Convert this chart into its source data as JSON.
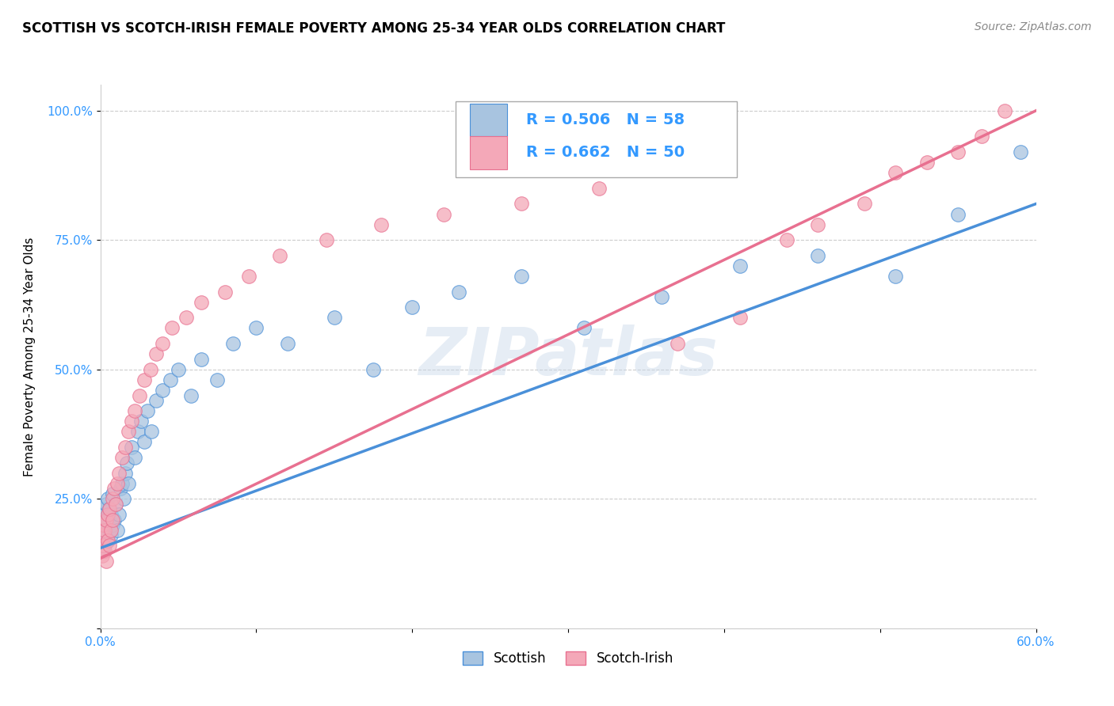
{
  "title": "SCOTTISH VS SCOTCH-IRISH FEMALE POVERTY AMONG 25-34 YEAR OLDS CORRELATION CHART",
  "source": "Source: ZipAtlas.com",
  "ylabel": "Female Poverty Among 25-34 Year Olds",
  "xlim": [
    0.0,
    0.6
  ],
  "ylim": [
    0.0,
    1.05
  ],
  "xticks": [
    0.0,
    0.1,
    0.2,
    0.3,
    0.4,
    0.5,
    0.6
  ],
  "xtick_labels": [
    "0.0%",
    "",
    "",
    "",
    "",
    "",
    "60.0%"
  ],
  "yticks": [
    0.0,
    0.25,
    0.5,
    0.75,
    1.0
  ],
  "ytick_labels": [
    "",
    "25.0%",
    "50.0%",
    "75.0%",
    "100.0%"
  ],
  "scottish_r": 0.506,
  "scottish_n": 58,
  "scotch_irish_r": 0.662,
  "scotch_irish_n": 50,
  "scottish_color": "#a8c4e0",
  "scotch_irish_color": "#f4a8b8",
  "scottish_line_color": "#4a90d9",
  "scotch_irish_line_color": "#e87090",
  "watermark": "ZIPatlas",
  "scottish_line_x0": 0.0,
  "scottish_line_y0": 0.155,
  "scottish_line_x1": 0.6,
  "scottish_line_y1": 0.82,
  "scotch_irish_line_x0": 0.0,
  "scotch_irish_line_y0": 0.135,
  "scotch_irish_line_x1": 0.6,
  "scotch_irish_line_y1": 1.0,
  "scottish_x": [
    0.001,
    0.001,
    0.002,
    0.002,
    0.002,
    0.003,
    0.003,
    0.003,
    0.004,
    0.004,
    0.005,
    0.005,
    0.005,
    0.006,
    0.006,
    0.007,
    0.007,
    0.008,
    0.008,
    0.009,
    0.01,
    0.011,
    0.012,
    0.013,
    0.014,
    0.015,
    0.016,
    0.017,
    0.018,
    0.02,
    0.022,
    0.024,
    0.026,
    0.028,
    0.03,
    0.033,
    0.036,
    0.04,
    0.045,
    0.05,
    0.058,
    0.065,
    0.075,
    0.085,
    0.1,
    0.12,
    0.15,
    0.175,
    0.2,
    0.23,
    0.27,
    0.31,
    0.36,
    0.41,
    0.46,
    0.51,
    0.55,
    0.59
  ],
  "scottish_y": [
    0.17,
    0.21,
    0.19,
    0.23,
    0.15,
    0.2,
    0.16,
    0.22,
    0.18,
    0.24,
    0.17,
    0.21,
    0.25,
    0.19,
    0.23,
    0.18,
    0.22,
    0.2,
    0.26,
    0.21,
    0.24,
    0.19,
    0.22,
    0.27,
    0.28,
    0.25,
    0.3,
    0.32,
    0.28,
    0.35,
    0.33,
    0.38,
    0.4,
    0.36,
    0.42,
    0.38,
    0.44,
    0.46,
    0.48,
    0.5,
    0.45,
    0.52,
    0.48,
    0.55,
    0.58,
    0.55,
    0.6,
    0.5,
    0.62,
    0.65,
    0.68,
    0.58,
    0.64,
    0.7,
    0.72,
    0.68,
    0.8,
    0.92
  ],
  "scotch_irish_x": [
    0.001,
    0.001,
    0.002,
    0.002,
    0.003,
    0.003,
    0.004,
    0.004,
    0.005,
    0.005,
    0.006,
    0.006,
    0.007,
    0.008,
    0.008,
    0.009,
    0.01,
    0.011,
    0.012,
    0.014,
    0.016,
    0.018,
    0.02,
    0.022,
    0.025,
    0.028,
    0.032,
    0.036,
    0.04,
    0.046,
    0.055,
    0.065,
    0.08,
    0.095,
    0.115,
    0.145,
    0.18,
    0.22,
    0.27,
    0.32,
    0.37,
    0.41,
    0.44,
    0.46,
    0.49,
    0.51,
    0.53,
    0.55,
    0.565,
    0.58
  ],
  "scotch_irish_y": [
    0.14,
    0.18,
    0.16,
    0.2,
    0.15,
    0.19,
    0.13,
    0.21,
    0.17,
    0.22,
    0.16,
    0.23,
    0.19,
    0.25,
    0.21,
    0.27,
    0.24,
    0.28,
    0.3,
    0.33,
    0.35,
    0.38,
    0.4,
    0.42,
    0.45,
    0.48,
    0.5,
    0.53,
    0.55,
    0.58,
    0.6,
    0.63,
    0.65,
    0.68,
    0.72,
    0.75,
    0.78,
    0.8,
    0.82,
    0.85,
    0.55,
    0.6,
    0.75,
    0.78,
    0.82,
    0.88,
    0.9,
    0.92,
    0.95,
    1.0
  ],
  "background_color": "#ffffff",
  "grid_color": "#cccccc",
  "title_fontsize": 12,
  "axis_label_fontsize": 11,
  "tick_fontsize": 11,
  "legend_fontsize": 14,
  "source_fontsize": 10
}
